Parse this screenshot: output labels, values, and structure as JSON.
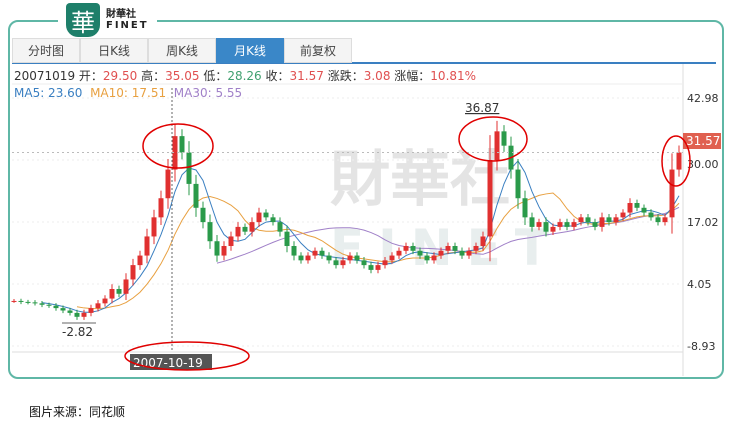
{
  "logo": {
    "mark": "華",
    "cn": "財華社",
    "en": "FINET"
  },
  "tabs": [
    {
      "label": "分时图"
    },
    {
      "label": "日K线"
    },
    {
      "label": "周K线"
    },
    {
      "label": "月K线",
      "active": true
    },
    {
      "label": "前复权"
    }
  ],
  "info": {
    "date": "20071019",
    "open_label": "开：",
    "open": "29.50",
    "high_label": "高：",
    "high": "35.05",
    "low_label": "低：",
    "low": "28.26",
    "close_label": "收：",
    "close": "31.57",
    "change_label": "涨跌：",
    "change": "3.08",
    "pct_label": "涨幅：",
    "pct": "10.81%"
  },
  "ma": {
    "ma5": "MA5: 23.60",
    "ma10": "MA10: 17.51",
    "ma30": "MA30: 5.55"
  },
  "colors": {
    "up": "#e03030",
    "down": "#2a9a4a",
    "ma5": "#3a7fc1",
    "ma10": "#e8a040",
    "ma30": "#a080c8",
    "frame": "#5fb7a6",
    "annotation": "#e00000"
  },
  "caption": "图片来源：同花顺",
  "chart_data": {
    "type": "candlestick",
    "interval": "monthly",
    "y_ticks": [
      "42.98",
      "30.00",
      "17.02",
      "4.05",
      "-8.93"
    ],
    "ylim": [
      -8.93,
      42.98
    ],
    "closes": [
      0.5,
      0.3,
      0.2,
      0.0,
      -0.3,
      -0.5,
      -1,
      -1.5,
      -2.0,
      -2.82,
      -2,
      -1,
      0,
      1,
      3,
      2,
      5,
      8,
      10,
      14,
      18,
      22,
      28,
      35,
      31.57,
      25,
      20,
      17,
      13,
      10,
      12,
      14,
      16,
      15,
      17,
      19,
      18,
      17,
      15,
      12,
      10,
      9,
      10,
      11,
      10,
      9,
      8,
      9,
      10,
      9,
      8,
      7,
      8,
      9,
      10,
      11,
      12,
      11,
      10,
      9,
      10,
      11,
      12,
      11,
      10,
      11,
      12,
      14,
      30,
      36,
      33,
      28,
      22,
      18,
      16,
      17,
      15,
      16,
      17,
      16,
      17,
      18,
      17,
      16,
      18,
      17,
      18,
      19,
      21,
      20,
      19,
      18,
      17,
      18,
      28,
      31.57
    ],
    "annotations": {
      "max_label": "36.87",
      "min_label": "-2.82",
      "cursor_date": "2007-10-19",
      "last_price": "31.57"
    },
    "watermark": "財華社 FINET"
  }
}
